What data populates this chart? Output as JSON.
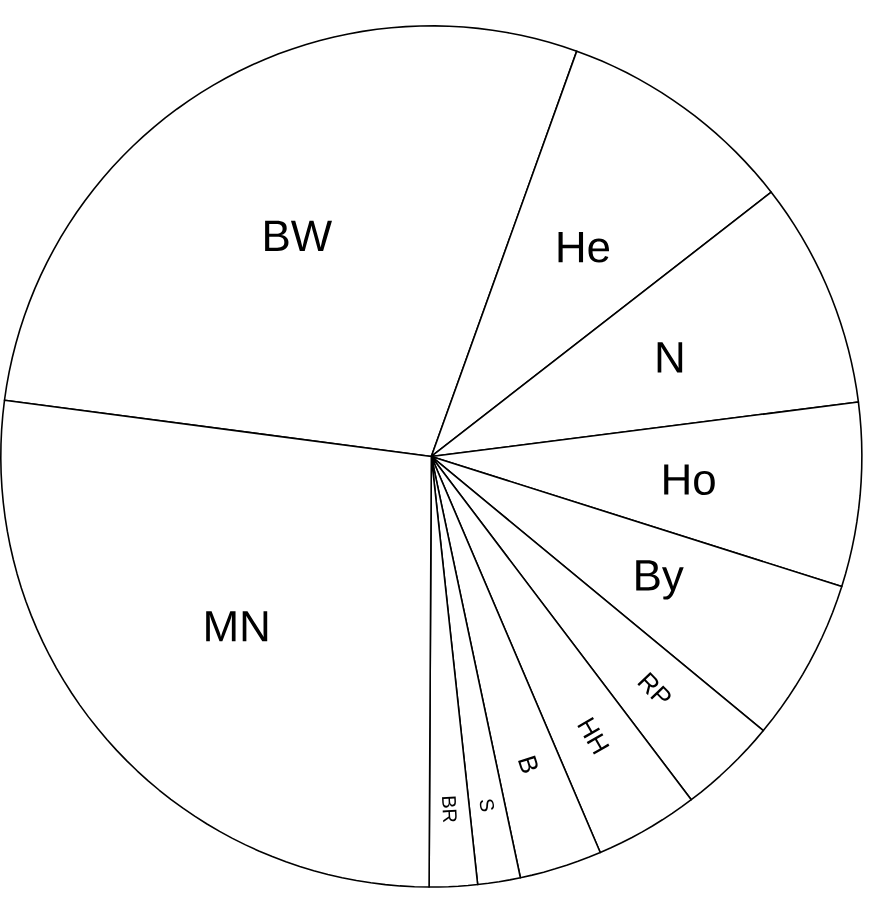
{
  "chart_data": {
    "type": "pie",
    "categories": [
      "BW",
      "He",
      "N",
      "Ho",
      "By",
      "RP",
      "HH",
      "B",
      "S",
      "BR",
      "MN"
    ],
    "values": [
      28.4,
      9.0,
      8.5,
      6.9,
      6.1,
      3.7,
      3.9,
      3.1,
      1.6,
      1.8,
      27.0
    ],
    "colors": [
      "#ffffff",
      "#ffffff",
      "#ffffff",
      "#ffffff",
      "#ffffff",
      "#ffffff",
      "#ffffff",
      "#ffffff",
      "#ffffff",
      "#ffffff",
      "#ffffff"
    ]
  }
}
